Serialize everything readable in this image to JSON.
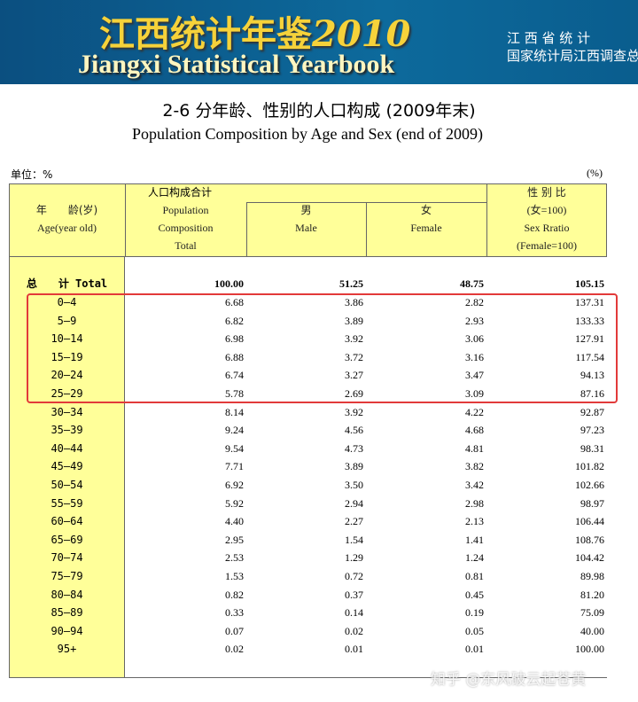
{
  "banner": {
    "title_cn": "江西统计年鉴",
    "year": "2010",
    "title_en": "Jiangxi Statistical Yearbook",
    "org_line1": "江 西 省 统 计",
    "org_line2": "国家统计局江西调查总"
  },
  "header": {
    "title": "2-6 分年龄、性别的人口构成 (2009年末)",
    "subtitle": "Population Composition by Age and Sex (end of 2009)",
    "unit_left": "单位：%",
    "unit_right": "(%)"
  },
  "table": {
    "columns": {
      "age": [
        "年　　龄(岁)",
        "Age(year old)"
      ],
      "group": "人口构成合计",
      "total": [
        "Population",
        "Composition",
        "Total"
      ],
      "male": [
        "男",
        "Male"
      ],
      "female": [
        "女",
        "Female"
      ],
      "ratio": [
        "性 别 比",
        "(女=100)",
        "Sex Rratio",
        "(Female=100)"
      ]
    },
    "total_row": [
      "总　　计 Total",
      "100.00",
      "51.25",
      "48.75",
      "105.15"
    ],
    "rows": [
      [
        "0—4",
        "6.68",
        "3.86",
        "2.82",
        "137.31"
      ],
      [
        "5—9",
        "6.82",
        "3.89",
        "2.93",
        "133.33"
      ],
      [
        "10—14",
        "6.98",
        "3.92",
        "3.06",
        "127.91"
      ],
      [
        "15—19",
        "6.88",
        "3.72",
        "3.16",
        "117.54"
      ],
      [
        "20—24",
        "6.74",
        "3.27",
        "3.47",
        "94.13"
      ],
      [
        "25—29",
        "5.78",
        "2.69",
        "3.09",
        "87.16"
      ],
      [
        "30—34",
        "8.14",
        "3.92",
        "4.22",
        "92.87"
      ],
      [
        "35—39",
        "9.24",
        "4.56",
        "4.68",
        "97.23"
      ],
      [
        "40—44",
        "9.54",
        "4.73",
        "4.81",
        "98.31"
      ],
      [
        "45—49",
        "7.71",
        "3.89",
        "3.82",
        "101.82"
      ],
      [
        "50—54",
        "6.92",
        "3.50",
        "3.42",
        "102.66"
      ],
      [
        "55—59",
        "5.92",
        "2.94",
        "2.98",
        "98.97"
      ],
      [
        "60—64",
        "4.40",
        "2.27",
        "2.13",
        "106.44"
      ],
      [
        "65—69",
        "2.95",
        "1.54",
        "1.41",
        "108.76"
      ],
      [
        "70—74",
        "2.53",
        "1.29",
        "1.24",
        "104.42"
      ],
      [
        "75—79",
        "1.53",
        "0.72",
        "0.81",
        "89.98"
      ],
      [
        "80—84",
        "0.82",
        "0.37",
        "0.45",
        "81.20"
      ],
      [
        "85—89",
        "0.33",
        "0.14",
        "0.19",
        "75.09"
      ],
      [
        "90—94",
        "0.07",
        "0.02",
        "0.05",
        "40.00"
      ],
      [
        "95+",
        "0.02",
        "0.01",
        "0.01",
        "100.00"
      ]
    ]
  },
  "watermark": "知乎 @东风破云起苍黄"
}
